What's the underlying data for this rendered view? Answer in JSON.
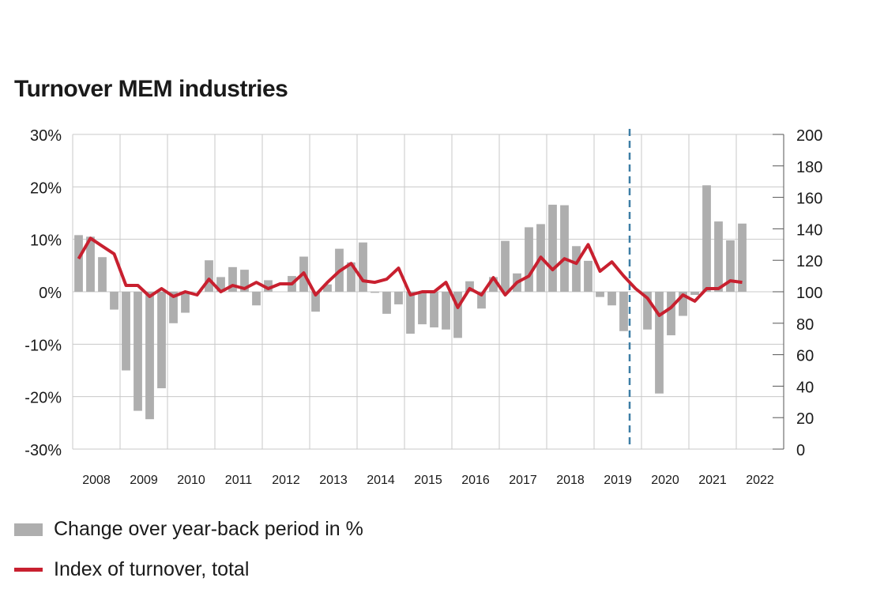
{
  "title": "Turnover MEM industries",
  "legend": {
    "bars_label": "Change over year-back period in %",
    "line_label": "Index of turnover, total"
  },
  "colors": {
    "bars": "#aeaeae",
    "line": "#c8202f",
    "grid": "#c8c8c8",
    "marker": "#3d7ea6"
  },
  "chart_data": {
    "type": "bar",
    "title": "Turnover MEM industries",
    "x_labels": [
      "2008",
      "2009",
      "2010",
      "2011",
      "2012",
      "2013",
      "2014",
      "2015",
      "2016",
      "2017",
      "2018",
      "2019",
      "2020",
      "2021",
      "2022"
    ],
    "y_left": {
      "min": -30,
      "max": 30,
      "ticks": [
        "-30%",
        "-20%",
        "-10%",
        "0%",
        "10%",
        "20%",
        "30%"
      ],
      "tick_values": [
        -30,
        -20,
        -10,
        0,
        10,
        20,
        30
      ]
    },
    "y_right": {
      "min": 0,
      "max": 200,
      "ticks": [
        "0",
        "20",
        "40",
        "60",
        "80",
        "100",
        "120",
        "140",
        "160",
        "180",
        "200"
      ],
      "tick_values": [
        0,
        20,
        40,
        60,
        80,
        100,
        120,
        140,
        160,
        180,
        200
      ]
    },
    "grid": true,
    "vertical_marker_after_quarter": 47,
    "series": [
      {
        "name": "Change over year-back period in %",
        "type": "bar",
        "axis": "left",
        "values": [
          10.8,
          10.5,
          6.6,
          -3.4,
          -15.0,
          -22.7,
          -24.3,
          -18.4,
          -6.0,
          -4.0,
          0.0,
          6.0,
          2.8,
          4.7,
          4.2,
          -2.6,
          2.2,
          0.0,
          3.0,
          6.7,
          -3.8,
          1.4,
          8.2,
          5.6,
          9.4,
          -0.2,
          -4.2,
          -2.4,
          -8.0,
          -6.2,
          -6.8,
          -7.2,
          -8.8,
          2.0,
          -3.2,
          2.8,
          9.7,
          3.5,
          12.3,
          12.9,
          16.6,
          16.5,
          8.7,
          5.9,
          -1.0,
          -2.6,
          -7.5,
          0.0,
          -7.2,
          -19.4,
          -8.3,
          -4.6,
          -0.6,
          20.3,
          13.4,
          9.8,
          13.0
        ]
      },
      {
        "name": "Index of turnover, total",
        "type": "line",
        "axis": "right",
        "values": [
          121,
          134,
          129,
          124,
          104,
          104,
          97,
          102,
          97,
          100,
          98,
          108,
          100,
          104,
          102,
          106,
          102,
          105,
          105,
          112,
          98,
          106,
          113,
          118,
          107,
          106,
          108,
          115,
          98,
          100,
          100,
          106,
          90,
          102,
          98,
          109,
          98,
          106,
          110,
          122,
          114,
          121,
          118,
          130,
          113,
          119,
          110,
          102,
          96,
          85,
          90,
          98,
          94,
          102,
          102,
          107,
          106
        ]
      }
    ]
  }
}
